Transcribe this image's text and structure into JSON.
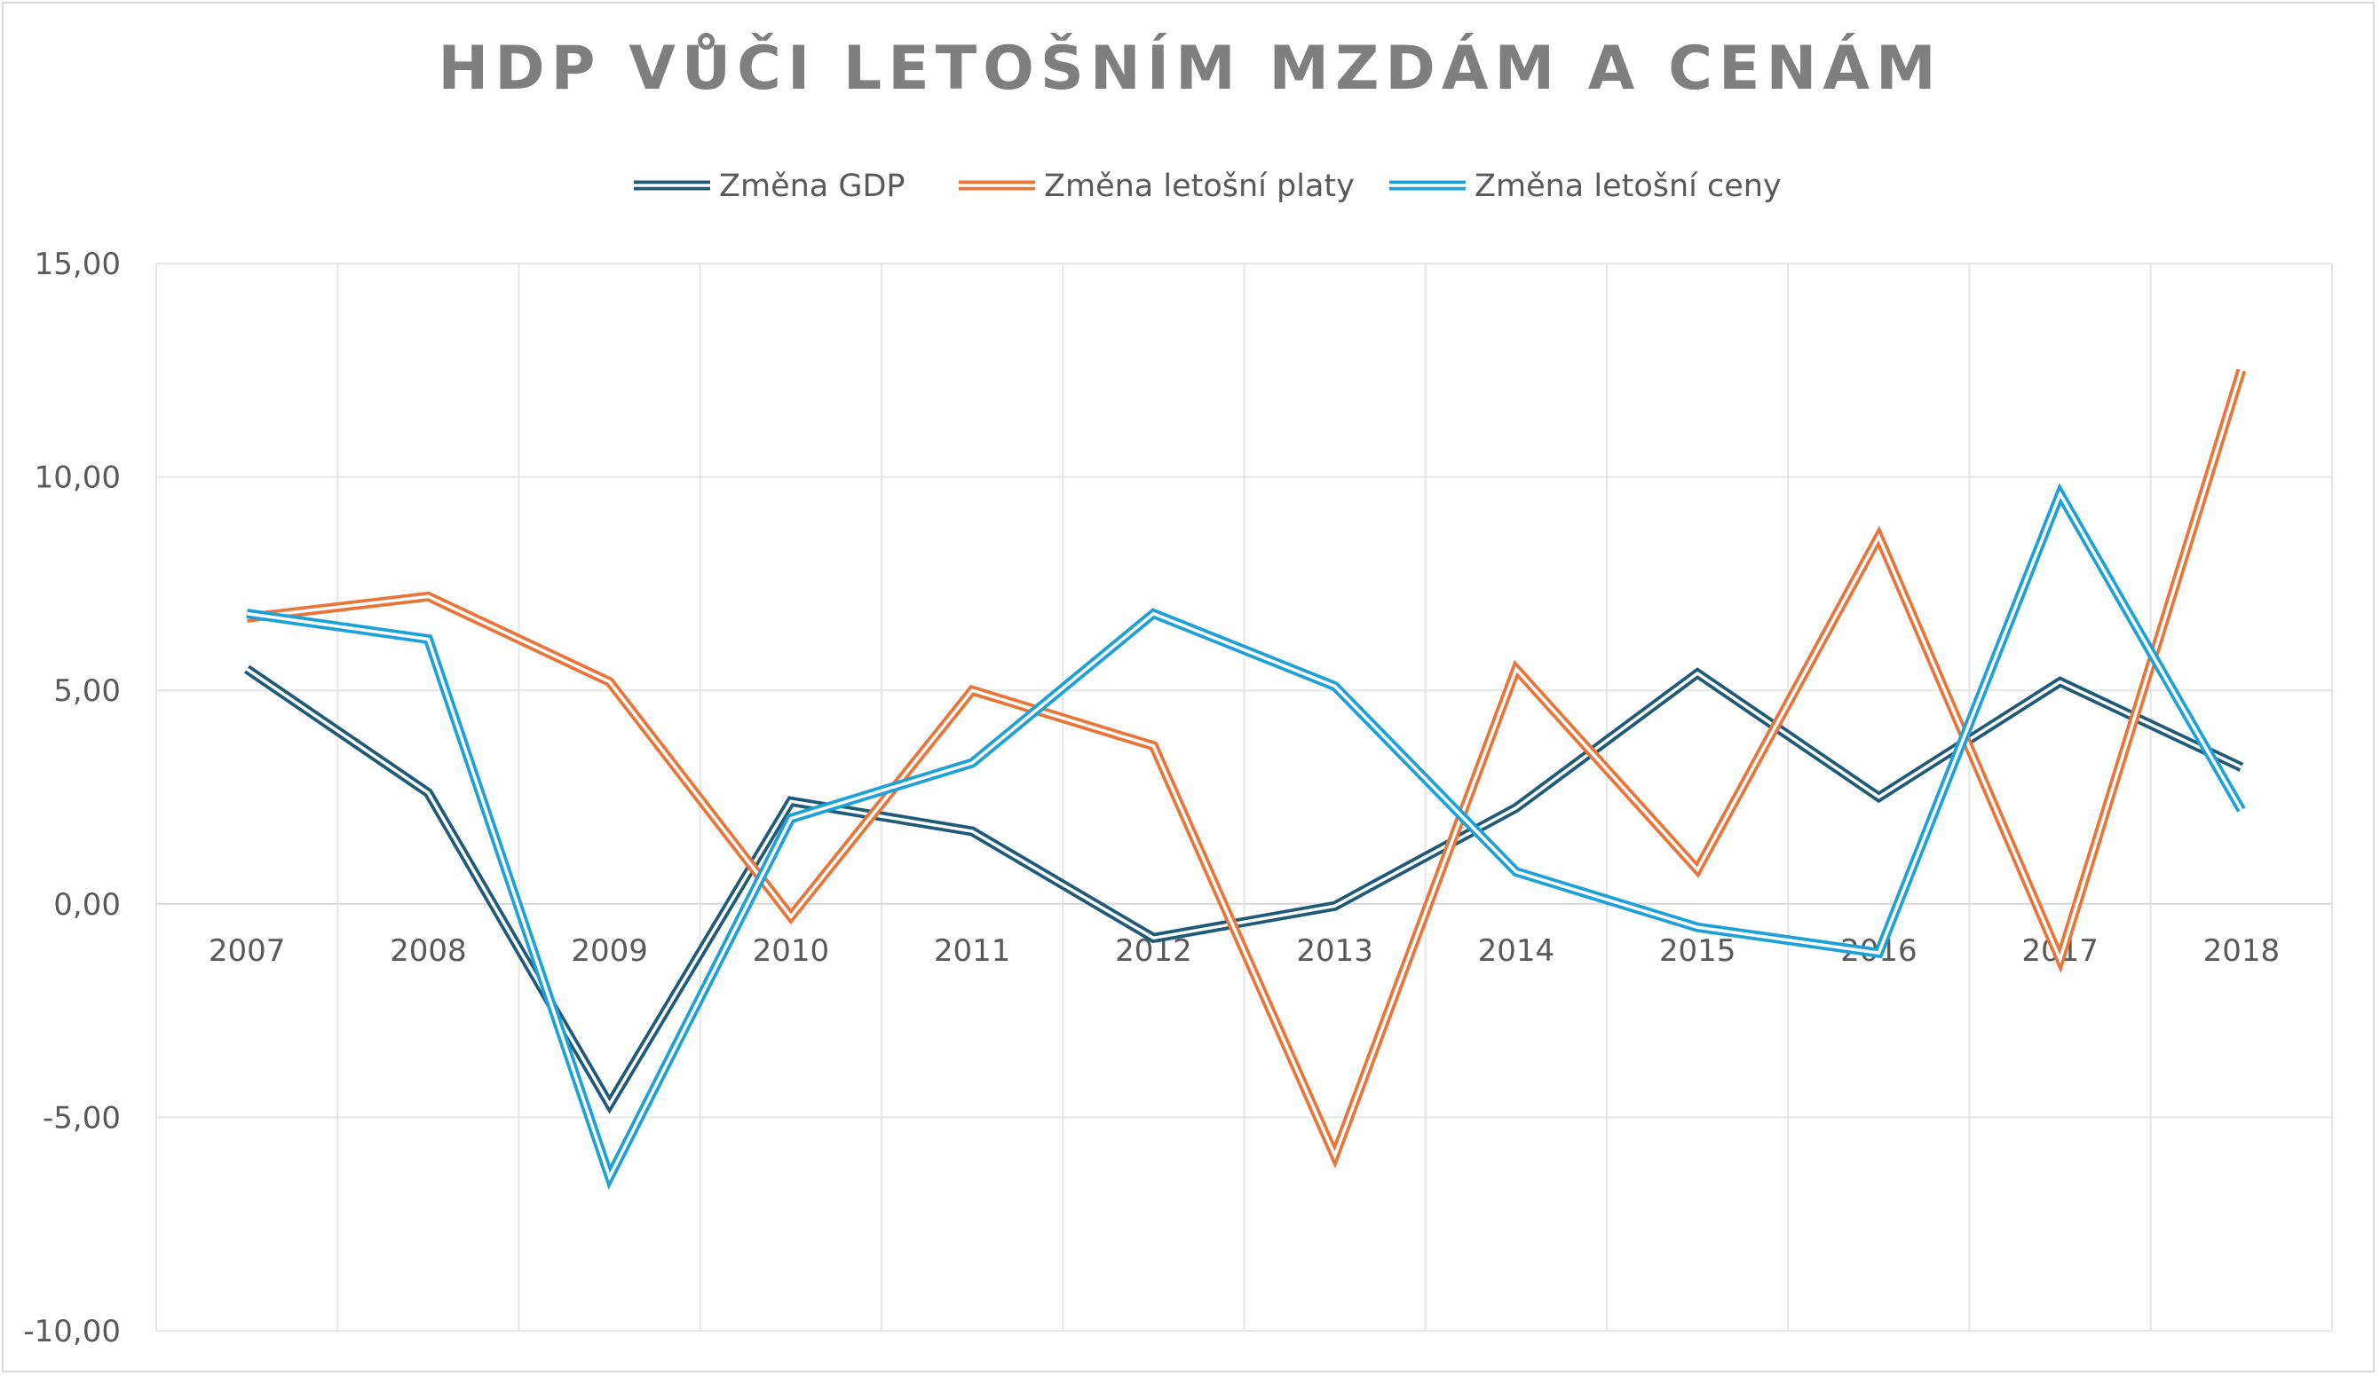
{
  "chart_data": {
    "type": "line",
    "title": "HDP VŮČI LETOŠNÍM MZDÁM A CENÁM",
    "xlabel": "",
    "ylabel": "",
    "categories": [
      "2007",
      "2008",
      "2009",
      "2010",
      "2011",
      "2012",
      "2013",
      "2014",
      "2015",
      "2016",
      "2017",
      "2018"
    ],
    "ylim": [
      -10,
      15
    ],
    "yticks": [
      15,
      10,
      5,
      0,
      -5,
      -10
    ],
    "ytick_labels": [
      "15,00",
      "10,00",
      "5,00",
      "0,00",
      "-5,00",
      "-10,00"
    ],
    "grid": true,
    "legend_position": "top",
    "series": [
      {
        "name": "Změna GDP",
        "color": "#1f5a78",
        "values": [
          5.5,
          2.6,
          -4.7,
          2.4,
          1.7,
          -0.8,
          -0.05,
          2.25,
          5.4,
          2.5,
          5.2,
          3.2
        ]
      },
      {
        "name": "Změna letošní platy",
        "color": "#e8753a",
        "values": [
          6.7,
          7.2,
          5.2,
          -0.3,
          5.0,
          3.7,
          -5.9,
          5.5,
          0.8,
          8.6,
          -1.3,
          12.5
        ]
      },
      {
        "name": "Změna letošní ceny",
        "color": "#1ea1d6",
        "values": [
          6.8,
          6.2,
          -6.4,
          2.0,
          3.3,
          6.8,
          5.1,
          0.75,
          -0.55,
          -1.15,
          9.6,
          2.2
        ]
      }
    ]
  }
}
